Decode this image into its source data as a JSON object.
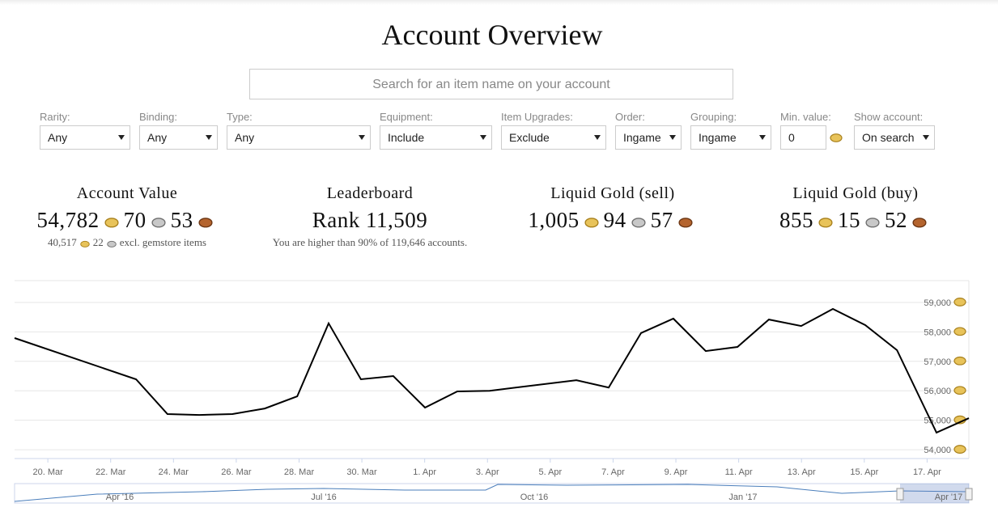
{
  "header": {
    "title": "Account Overview"
  },
  "search": {
    "placeholder": "Search for an item name on your account"
  },
  "filters": [
    {
      "label": "Rarity:",
      "value": "Any"
    },
    {
      "label": "Binding:",
      "value": "Any"
    },
    {
      "label": "Type:",
      "value": "Any"
    },
    {
      "label": "Equipment:",
      "value": "Include"
    },
    {
      "label": "Item Upgrades:",
      "value": "Exclude"
    },
    {
      "label": "Order:",
      "value": "Ingame"
    },
    {
      "label": "Grouping:",
      "value": "Ingame"
    },
    {
      "label": "Min. value:",
      "value": "0"
    },
    {
      "label": "Show account:",
      "value": "On search"
    }
  ],
  "stats": [
    {
      "title": "Account Value",
      "coins": [
        "54,782",
        "70",
        "53"
      ],
      "note_coins": [
        "40,517",
        "22"
      ],
      "note": "excl. gemstore items"
    },
    {
      "title": "Leaderboard",
      "text": "Rank 11,509",
      "note": "You are higher than 90% of 119,646 accounts."
    },
    {
      "title": "Liquid Gold (sell)",
      "coins": [
        "1,005",
        "94",
        "57"
      ]
    },
    {
      "title": "Liquid Gold (buy)",
      "coins": [
        "855",
        "15",
        "52"
      ]
    }
  ],
  "chart_data": {
    "type": "line",
    "x": [
      18.94,
      22.81,
      23.81,
      24.82,
      25.88,
      26.91,
      27.94,
      28.94,
      29.97,
      31.0,
      32.01,
      33.04,
      34.07,
      36.83,
      37.86,
      38.89,
      39.92,
      40.95,
      41.96,
      42.96,
      43.99,
      45.0,
      46.03,
      47.04,
      48.3,
      49.33
    ],
    "series": [
      {
        "color": "#000000",
        "values": [
          57790,
          56390,
          55210,
          55180,
          55210,
          55400,
          55810,
          58290,
          56390,
          56500,
          55430,
          55980,
          56000,
          56360,
          56110,
          57960,
          58450,
          57350,
          57490,
          58420,
          58200,
          58780,
          58230,
          57380,
          54580,
          55070
        ]
      }
    ],
    "xlim": [
      18.94,
      49.33
    ],
    "xticks": [
      {
        "value": 20,
        "label": "20. Mar"
      },
      {
        "value": 22,
        "label": "22. Mar"
      },
      {
        "value": 24,
        "label": "24. Mar"
      },
      {
        "value": 26,
        "label": "26. Mar"
      },
      {
        "value": 28,
        "label": "28. Mar"
      },
      {
        "value": 30,
        "label": "30. Mar"
      },
      {
        "value": 32,
        "label": "1. Apr"
      },
      {
        "value": 34,
        "label": "3. Apr"
      },
      {
        "value": 36,
        "label": "5. Apr"
      },
      {
        "value": 38,
        "label": "7. Apr"
      },
      {
        "value": 40,
        "label": "9. Apr"
      },
      {
        "value": 42,
        "label": "11. Apr"
      },
      {
        "value": 44,
        "label": "13. Apr"
      },
      {
        "value": 46,
        "label": "15. Apr"
      },
      {
        "value": 48,
        "label": "17. Apr"
      }
    ],
    "ylim": [
      53700,
      59740
    ],
    "yticks": [
      {
        "value": 54000,
        "label": "54,000"
      },
      {
        "value": 55000,
        "label": "55,000"
      },
      {
        "value": 56000,
        "label": "56,000"
      },
      {
        "value": 57000,
        "label": "57,000"
      },
      {
        "value": 58000,
        "label": "58,000"
      },
      {
        "value": 59000,
        "label": "59,000"
      }
    ],
    "grid": true
  },
  "navigator": {
    "labels": [
      "Apr '16",
      "Jul '16",
      "Oct '16",
      "Jan '17",
      "Apr '17"
    ]
  }
}
